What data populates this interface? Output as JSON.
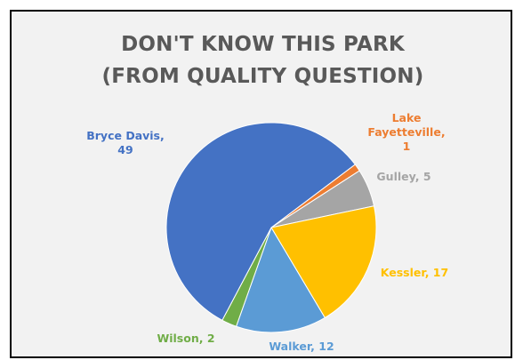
{
  "chart_data": {
    "type": "pie",
    "title_lines": [
      "DON'T KNOW THIS PARK",
      "(FROM QUALITY QUESTION)"
    ],
    "categories": [
      "Lake Fayetteville",
      "Gulley",
      "Kessler",
      "Walker",
      "Wilson",
      "Bryce Davis"
    ],
    "values": [
      1,
      5,
      17,
      12,
      2,
      49
    ],
    "colors": [
      "#ed7d31",
      "#a5a5a5",
      "#ffc000",
      "#5b9bd5",
      "#70ad47",
      "#4472c4"
    ],
    "labels": [
      {
        "lines": [
          "Lake",
          "Fayetteville,",
          "1"
        ]
      },
      {
        "lines": [
          "Gulley, 5"
        ]
      },
      {
        "lines": [
          "Kessler, 17"
        ]
      },
      {
        "lines": [
          "Walker, 12"
        ]
      },
      {
        "lines": [
          "Wilson, 2"
        ]
      },
      {
        "lines": [
          "Bryce Davis,",
          "49"
        ]
      }
    ],
    "legend": "none"
  }
}
